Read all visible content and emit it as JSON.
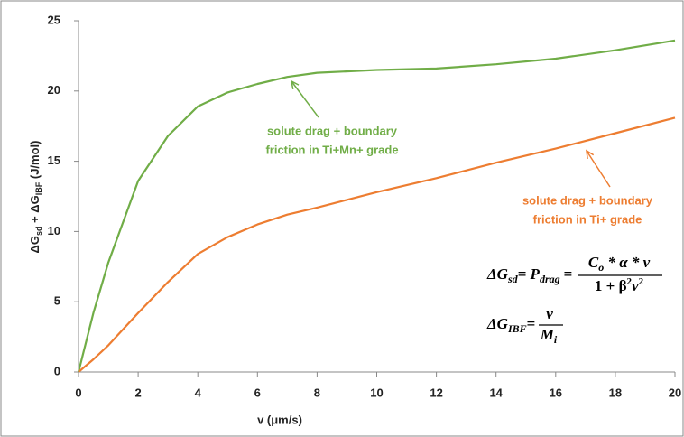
{
  "chart_data": {
    "type": "line",
    "x_label": "v (μm/s)",
    "y_label_parts": [
      "ΔG",
      "sd",
      " + ΔG",
      "IBF",
      " (J/mol)"
    ],
    "x": [
      0,
      0.5,
      1,
      2,
      3,
      4,
      5,
      6,
      7,
      8,
      10,
      12,
      14,
      16,
      18,
      20
    ],
    "series": [
      {
        "name": "solute drag + boundary friction in Ti+Mn+ grade",
        "color": "#70ad47",
        "values": [
          0,
          4.2,
          7.8,
          13.6,
          16.8,
          18.9,
          19.9,
          20.5,
          21.0,
          21.3,
          21.5,
          21.6,
          21.9,
          22.3,
          22.9,
          23.6
        ]
      },
      {
        "name": "solute drag + boundary friction in Ti+ grade",
        "color": "#ed7d31",
        "values": [
          0,
          0.9,
          1.9,
          4.2,
          6.4,
          8.4,
          9.6,
          10.5,
          11.2,
          11.7,
          12.8,
          13.8,
          14.9,
          15.9,
          17.0,
          18.1
        ]
      }
    ],
    "annotations": [
      {
        "lines": [
          "solute drag + boundary",
          "friction in Ti+Mn+ grade"
        ],
        "color": "#70ad47"
      },
      {
        "lines": [
          "solute drag + boundary",
          "friction in Ti+ grade"
        ],
        "color": "#ed7d31"
      }
    ],
    "equations": [
      [
        "ΔG",
        "sd",
        "= P",
        "drag",
        "=",
        "C",
        "o",
        " * α * v",
        "1 + β",
        "2",
        "v",
        "2"
      ],
      [
        "ΔG",
        "IBF",
        "=",
        "v",
        "M",
        "i"
      ]
    ],
    "xlim": [
      0,
      20
    ],
    "xticks": [
      0,
      2,
      4,
      6,
      8,
      10,
      12,
      14,
      16,
      18,
      20
    ],
    "ylim": [
      0,
      25
    ],
    "yticks": [
      0,
      5,
      10,
      15,
      20,
      25
    ],
    "grid": false
  }
}
